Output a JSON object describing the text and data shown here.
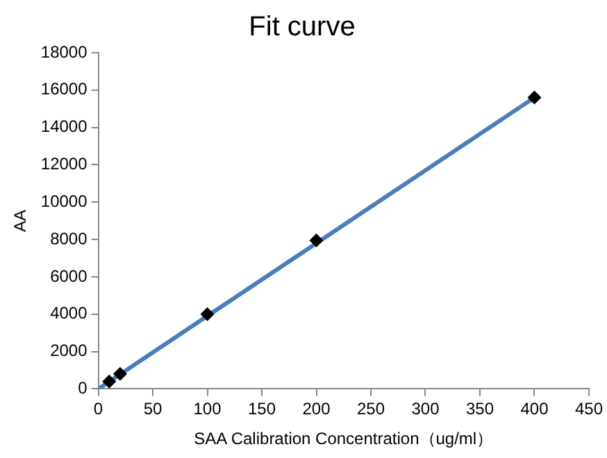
{
  "chart_data": {
    "type": "scatter",
    "title": "Fit curve",
    "xlabel": "SAA Calibration Concentration（ug/ml）",
    "ylabel": "AA",
    "xlim": [
      0,
      450
    ],
    "xticks": [
      0,
      50,
      100,
      150,
      200,
      250,
      300,
      350,
      400,
      450
    ],
    "ylim": [
      0,
      18000
    ],
    "yticks": [
      0,
      2000,
      4000,
      6000,
      8000,
      10000,
      12000,
      14000,
      16000,
      18000
    ],
    "grid": false,
    "legend": false,
    "series": [
      {
        "type": "line",
        "color": "#4a7ebb",
        "x": [
          0,
          400
        ],
        "values": [
          0,
          15600
        ],
        "marker": "none",
        "line_style": "solid"
      },
      {
        "type": "scatter",
        "color": "#000000",
        "x": [
          10,
          20,
          100,
          200,
          400
        ],
        "values": [
          400,
          800,
          4000,
          7950,
          15600
        ],
        "marker": "diamond"
      }
    ]
  }
}
